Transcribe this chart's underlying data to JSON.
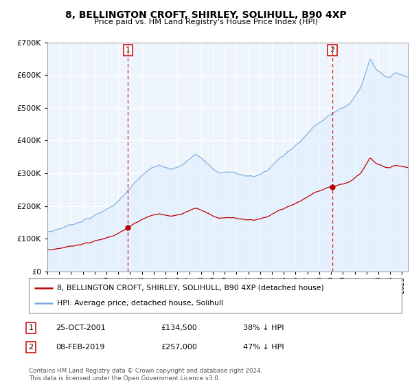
{
  "title": "8, BELLINGTON CROFT, SHIRLEY, SOLIHULL, B90 4XP",
  "subtitle": "Price paid vs. HM Land Registry's House Price Index (HPI)",
  "legend_property": "8, BELLINGTON CROFT, SHIRLEY, SOLIHULL, B90 4XP (detached house)",
  "legend_hpi": "HPI: Average price, detached house, Solihull",
  "footnote": "Contains HM Land Registry data © Crown copyright and database right 2024.\nThis data is licensed under the Open Government Licence v3.0.",
  "transaction1": {
    "num": "1",
    "date": "25-OCT-2001",
    "price": "£134,500",
    "pct": "38% ↓ HPI"
  },
  "transaction2": {
    "num": "2",
    "date": "08-FEB-2019",
    "price": "£257,000",
    "pct": "47% ↓ HPI"
  },
  "sale1_year": 2001.82,
  "sale1_price": 134500,
  "sale2_year": 2019.1,
  "sale2_price": 257000,
  "property_color": "#bb0000",
  "hpi_color": "#7aaadd",
  "hpi_fill_color": "#ddeeff",
  "vline_color": "#cc0000",
  "ylim": [
    0,
    700000
  ],
  "xlim_start": 1995,
  "xlim_end": 2025.5,
  "background_color": "#ffffff",
  "plot_bg_color": "#eef4fb",
  "grid_color": "#ffffff"
}
